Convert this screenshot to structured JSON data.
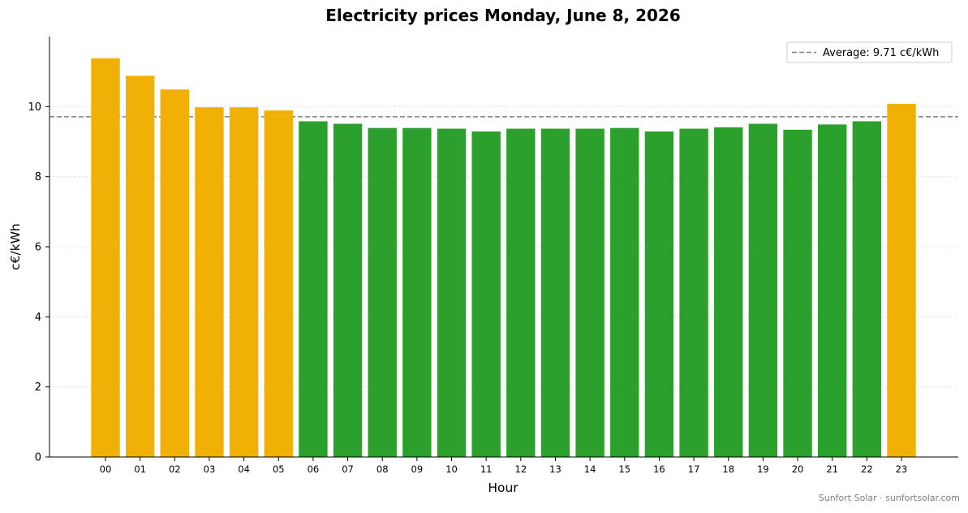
{
  "chart_data": {
    "type": "bar",
    "title": "Electricity prices Monday, June 8, 2026",
    "xlabel": "Hour",
    "ylabel": "c€/kWh",
    "categories": [
      "00",
      "01",
      "02",
      "03",
      "04",
      "05",
      "06",
      "07",
      "08",
      "09",
      "10",
      "11",
      "12",
      "13",
      "14",
      "15",
      "16",
      "17",
      "18",
      "19",
      "20",
      "21",
      "22",
      "23"
    ],
    "values": [
      11.38,
      10.88,
      10.49,
      9.98,
      9.98,
      9.89,
      9.58,
      9.51,
      9.39,
      9.39,
      9.37,
      9.29,
      9.37,
      9.37,
      9.37,
      9.39,
      9.29,
      9.37,
      9.41,
      9.51,
      9.34,
      9.49,
      9.58,
      10.08
    ],
    "ylim": [
      0,
      12
    ],
    "yticks": [
      0,
      2,
      4,
      6,
      8,
      10
    ],
    "average": {
      "label": "Average: 9.71 c€/kWh",
      "value": 9.71,
      "color": "#808080"
    },
    "colors": {
      "above_average": "#f0b005",
      "below_average": "#2ca02c"
    },
    "grid": "horizontal dotted",
    "legend": "top-right"
  },
  "footer": "Sunfort Solar · sunfortsolar.com"
}
